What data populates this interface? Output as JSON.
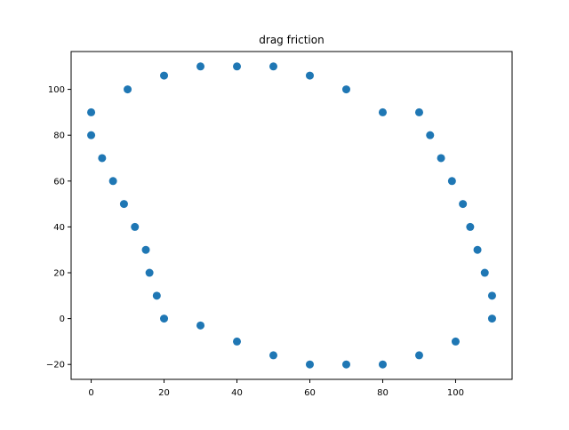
{
  "chart_data": {
    "type": "scatter",
    "title": "drag friction",
    "xlabel": "",
    "ylabel": "",
    "xlim": [
      -5.5,
      115.5
    ],
    "ylim": [
      -26.5,
      116.5
    ],
    "xticks": [
      0,
      20,
      40,
      60,
      80,
      100
    ],
    "yticks": [
      -20,
      0,
      20,
      40,
      60,
      80,
      100
    ],
    "grid": false,
    "legend": "none",
    "marker_color": "#1f77b4",
    "series": [
      {
        "x": [
          0,
          0,
          10,
          20,
          30,
          40,
          50,
          60,
          70,
          80,
          90,
          93,
          96,
          99,
          102,
          104,
          106,
          108,
          110,
          110,
          100,
          90,
          80,
          70,
          60,
          50,
          40,
          30,
          20,
          18,
          16,
          15,
          12,
          9,
          6,
          3
        ],
        "y": [
          90,
          80,
          100,
          106,
          110,
          110,
          110,
          106,
          100,
          90,
          90,
          80,
          70,
          60,
          50,
          40,
          30,
          20,
          10,
          0,
          -10,
          -16,
          -20,
          -20,
          -20,
          -16,
          -10,
          -3,
          0,
          10,
          20,
          30,
          40,
          50,
          60,
          70
        ]
      }
    ]
  }
}
